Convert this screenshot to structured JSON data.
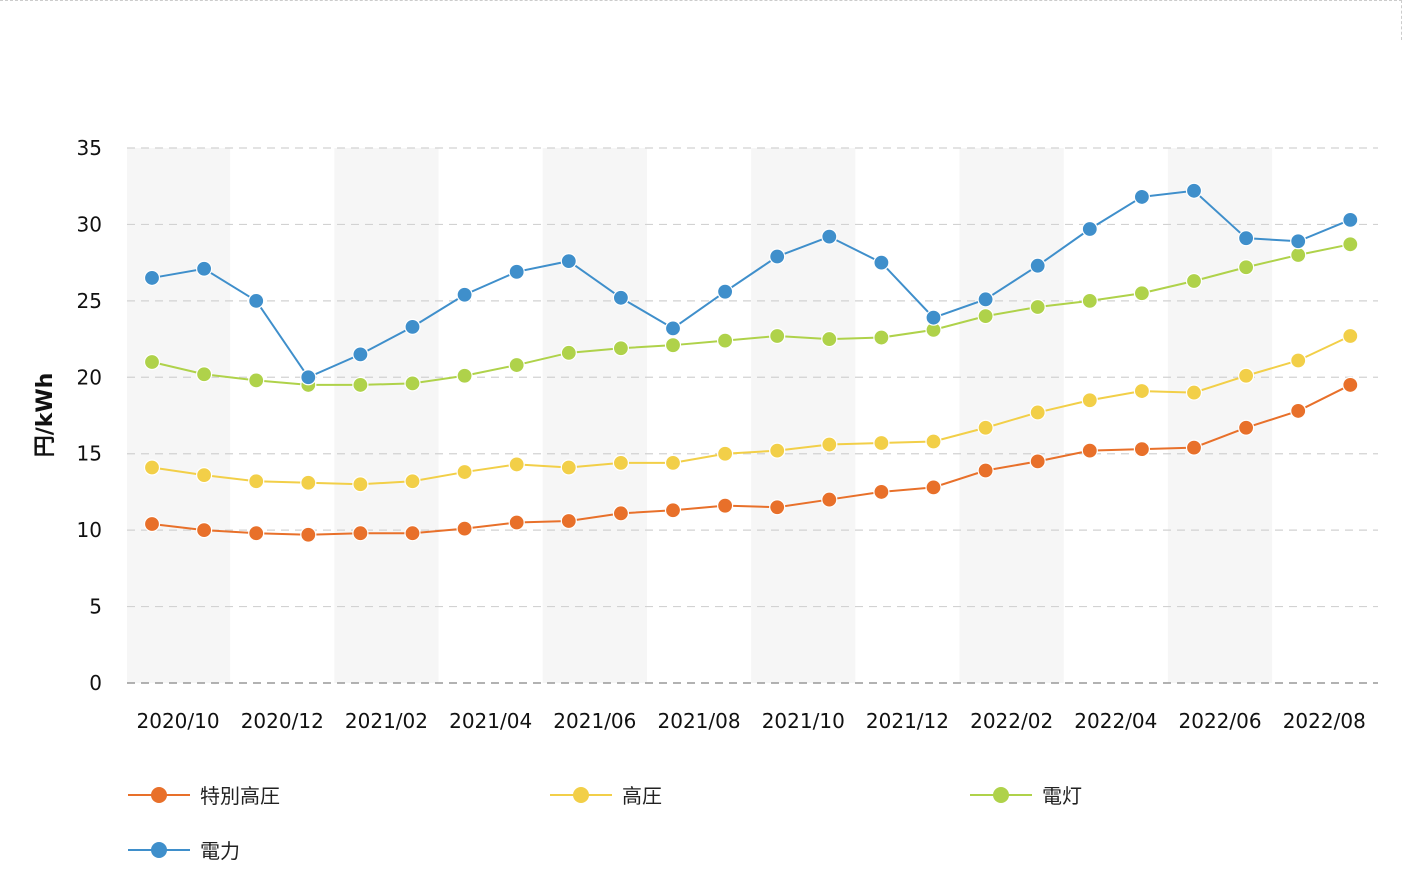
{
  "chart_data": {
    "type": "line",
    "title": "",
    "xlabel": "",
    "ylabel": "円/kWh",
    "ylim": [
      0,
      35
    ],
    "yticks": [
      0,
      5,
      10,
      15,
      20,
      25,
      30,
      35
    ],
    "grid": true,
    "legend_position": "bottom",
    "x": [
      "2020/10",
      "2020/11",
      "2020/12",
      "2021/01",
      "2021/02",
      "2021/03",
      "2021/04",
      "2021/05",
      "2021/06",
      "2021/07",
      "2021/08",
      "2021/09",
      "2021/10",
      "2021/11",
      "2021/12",
      "2022/01",
      "2022/02",
      "2022/03",
      "2022/04",
      "2022/05",
      "2022/06",
      "2022/07",
      "2022/08",
      "2022/09"
    ],
    "x_tick_labels": [
      "2020/10",
      "2020/12",
      "2021/02",
      "2021/04",
      "2021/06",
      "2021/08",
      "2021/10",
      "2021/12",
      "2022/02",
      "2022/04",
      "2022/06",
      "2022/08"
    ],
    "series": [
      {
        "name": "特別高圧",
        "color": "#e8702a",
        "values": [
          10.4,
          10.0,
          9.8,
          9.7,
          9.8,
          9.8,
          10.1,
          10.5,
          10.6,
          11.1,
          11.3,
          11.6,
          11.5,
          12.0,
          12.5,
          12.8,
          13.9,
          14.5,
          15.2,
          15.3,
          15.4,
          16.7,
          17.8,
          19.5
        ]
      },
      {
        "name": "高圧",
        "color": "#f2cf48",
        "values": [
          14.1,
          13.6,
          13.2,
          13.1,
          13.0,
          13.2,
          13.8,
          14.3,
          14.1,
          14.4,
          14.4,
          15.0,
          15.2,
          15.6,
          15.7,
          15.8,
          16.7,
          17.7,
          18.5,
          19.1,
          19.0,
          20.1,
          21.1,
          22.7
        ]
      },
      {
        "name": "電灯",
        "color": "#afd24a",
        "values": [
          21.0,
          20.2,
          19.8,
          19.5,
          19.5,
          19.6,
          20.1,
          20.8,
          21.6,
          21.9,
          22.1,
          22.4,
          22.7,
          22.5,
          22.6,
          23.1,
          24.0,
          24.6,
          25.0,
          25.5,
          26.3,
          27.2,
          28.0,
          28.7
        ]
      },
      {
        "name": "電力",
        "color": "#3f8fcb",
        "values": [
          26.5,
          27.1,
          25.0,
          20.0,
          21.5,
          23.3,
          25.4,
          26.9,
          27.6,
          25.2,
          23.2,
          25.6,
          27.9,
          29.2,
          27.5,
          23.9,
          25.1,
          27.3,
          29.7,
          31.8,
          32.2,
          29.1,
          28.9,
          30.3
        ]
      }
    ]
  }
}
